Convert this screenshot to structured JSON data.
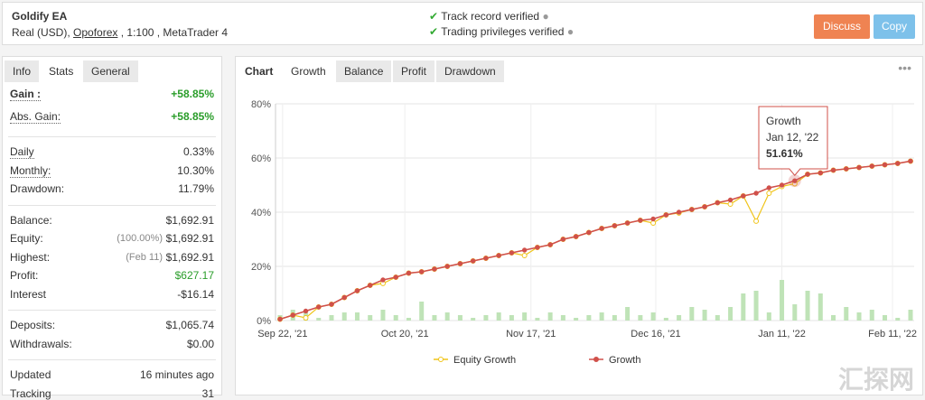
{
  "header": {
    "title": "Goldify EA",
    "account_prefix": "Real (USD),",
    "broker": "Opoforex",
    "account_suffix": ", 1:100 , MetaTrader 4",
    "verified": [
      "Track record verified",
      "Trading privileges verified"
    ],
    "buttons": [
      "Discuss",
      "Copy"
    ]
  },
  "stats": {
    "tabs": [
      "Info",
      "Stats",
      "General"
    ],
    "active_tab": 1,
    "groups": [
      [
        {
          "label": "Gain :",
          "value": "+58.85%",
          "tone": "gain"
        },
        {
          "label": "Abs. Gain:",
          "value": "+58.85%",
          "tone": "gain"
        }
      ],
      [
        {
          "label": "Daily",
          "value": "0.33%"
        },
        {
          "label": "Monthly:",
          "value": "10.30%"
        },
        {
          "label": "Drawdown:",
          "value": "11.79%"
        }
      ],
      [
        {
          "label": "Balance:",
          "value": "$1,692.91"
        },
        {
          "label": "Equity:",
          "note": "(100.00%)",
          "value": "$1,692.91"
        },
        {
          "label": "Highest:",
          "note": "(Feb 11)",
          "value": "$1,692.91"
        },
        {
          "label": "Profit:",
          "value": "$627.17",
          "tone": "gain"
        },
        {
          "label": "Interest",
          "value": "-$16.14"
        }
      ],
      [
        {
          "label": "Deposits:",
          "value": "$1,065.74"
        },
        {
          "label": "Withdrawals:",
          "value": "$0.00"
        }
      ],
      [
        {
          "label": "Updated",
          "value": "16 minutes ago"
        },
        {
          "label": "Tracking",
          "value": "31"
        }
      ]
    ]
  },
  "chart_panel": {
    "label": "Chart",
    "tabs": [
      "Growth",
      "Balance",
      "Profit",
      "Drawdown"
    ],
    "active_tab": 0
  },
  "chart": {
    "type": "line",
    "xlim": [
      0,
      49
    ],
    "ylim": [
      0,
      80
    ],
    "yticks": [
      {
        "value": 0,
        "label": "0%"
      },
      {
        "value": 20,
        "label": "20%"
      },
      {
        "value": 40,
        "label": "40%"
      },
      {
        "value": 60,
        "label": "60%"
      },
      {
        "value": 80,
        "label": "80%"
      }
    ],
    "xticks": [
      {
        "value": 0.2,
        "label": "Sep 22, '21"
      },
      {
        "value": 9.7,
        "label": "Oct 20, '21"
      },
      {
        "value": 19.5,
        "label": "Nov 17, '21"
      },
      {
        "value": 29.2,
        "label": "Dec 16, '21"
      },
      {
        "value": 39,
        "label": "Jan 11, '22"
      },
      {
        "value": 47.6,
        "label": "Feb 11, '22"
      }
    ],
    "grid": true,
    "series": [
      {
        "name": "Equity Growth",
        "color": "#f0c419",
        "values": [
          0.5,
          2,
          1,
          5,
          6,
          8.5,
          11,
          13,
          13.7,
          16,
          17.5,
          18,
          19,
          20,
          21,
          22,
          23,
          24,
          25,
          24,
          27,
          28,
          30,
          31,
          32.5,
          34,
          35,
          36,
          37,
          36,
          39,
          39.7,
          41,
          42,
          43.5,
          43,
          46,
          36.7,
          47,
          49.5,
          50.5,
          54,
          54.5,
          55.5,
          56,
          56.5,
          57,
          57.5,
          58,
          58.85
        ]
      },
      {
        "name": "Growth",
        "color": "#d0504a",
        "values": [
          0.5,
          2,
          3.5,
          5,
          6,
          8.5,
          11,
          13,
          15,
          16,
          17.5,
          18,
          19,
          20,
          21,
          22,
          23,
          24,
          25,
          26,
          27,
          28,
          30,
          31,
          32.5,
          34,
          35,
          36,
          37,
          37.5,
          39,
          40,
          41,
          42,
          43.5,
          44.5,
          46,
          47,
          49,
          50,
          51.61,
          54,
          54.5,
          55.5,
          56,
          56.5,
          57,
          57.5,
          58,
          58.85
        ]
      }
    ],
    "bars": {
      "color": "#bfe3b7",
      "values": [
        2,
        4,
        3,
        1,
        2,
        3,
        3,
        2,
        4,
        2,
        1,
        7,
        2,
        3,
        2,
        1,
        2,
        3,
        2,
        3,
        1,
        3,
        2,
        1,
        2,
        3,
        2,
        5,
        2,
        3,
        1,
        2,
        5,
        4,
        2,
        5,
        10,
        11,
        3,
        15,
        6,
        11,
        10,
        2,
        5,
        3,
        4,
        2,
        1,
        4
      ]
    },
    "tooltip": {
      "index": 40,
      "title": "Growth",
      "date": "Jan 12, '22",
      "value": "51.61%"
    },
    "watermark": "汇探网"
  }
}
